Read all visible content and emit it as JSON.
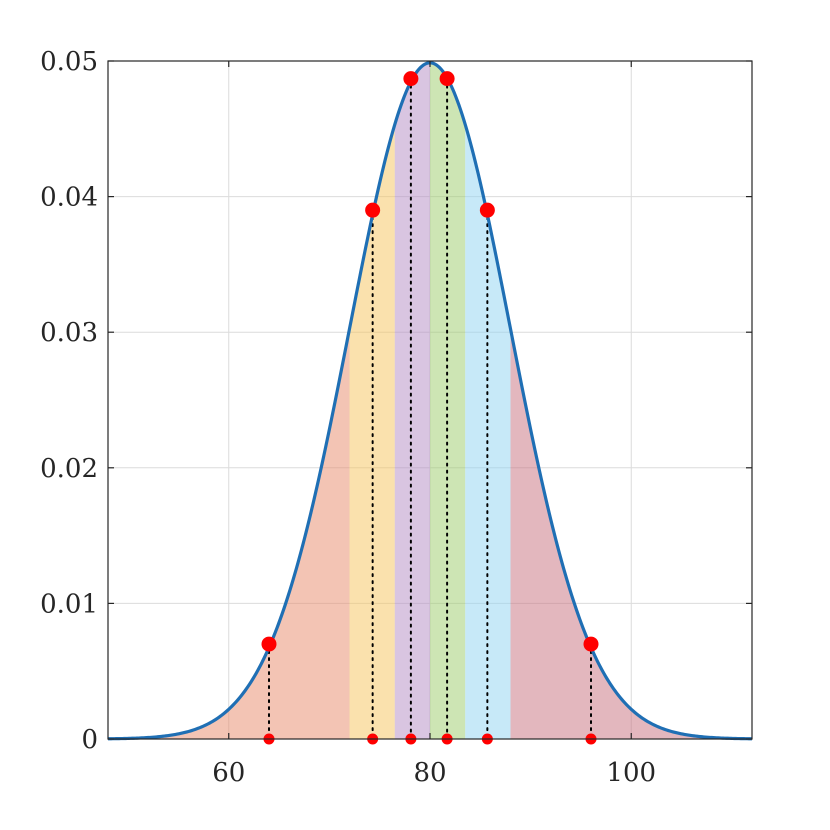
{
  "chart_data": {
    "type": "area",
    "distribution": {
      "kind": "normal",
      "mean": 80,
      "std": 8
    },
    "xlim": [
      48,
      112
    ],
    "ylim": [
      0,
      0.05
    ],
    "x_ticks": [
      60,
      80,
      100
    ],
    "x_tick_labels": [
      "60",
      "80",
      "100"
    ],
    "y_ticks": [
      0,
      0.01,
      0.02,
      0.03,
      0.04,
      0.05
    ],
    "y_tick_labels": [
      "0",
      "0.01",
      "0.02",
      "0.03",
      "0.04",
      "0.05"
    ],
    "grid": true,
    "curve_color": "#1f6fb4",
    "bands": [
      {
        "from": 48,
        "to": 72,
        "color": "#e8896a"
      },
      {
        "from": 72,
        "to": 76.5,
        "color": "#f5c35b"
      },
      {
        "from": 76.5,
        "to": 80,
        "color": "#b48cc4"
      },
      {
        "from": 80,
        "to": 83.5,
        "color": "#9ccc6a"
      },
      {
        "from": 83.5,
        "to": 88,
        "color": "#8fd3f2"
      },
      {
        "from": 88,
        "to": 112,
        "color": "#c7707e"
      }
    ],
    "marker_color": "#ff0000",
    "points": [
      {
        "x": 64,
        "y": 0.007
      },
      {
        "x": 74.3,
        "y": 0.039
      },
      {
        "x": 78.1,
        "y": 0.0487
      },
      {
        "x": 81.7,
        "y": 0.0487
      },
      {
        "x": 85.7,
        "y": 0.039
      },
      {
        "x": 96,
        "y": 0.007
      }
    ]
  }
}
